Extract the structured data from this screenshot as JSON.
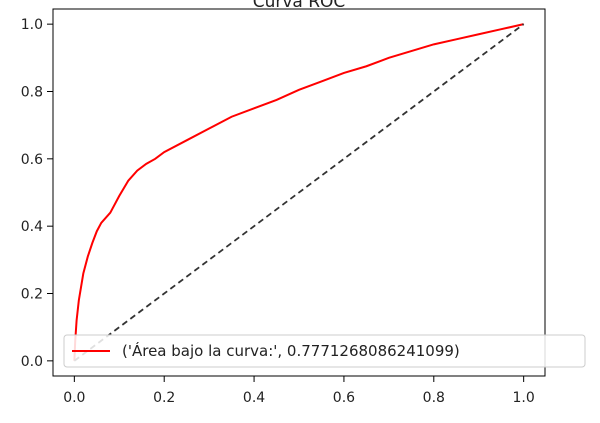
{
  "chart_data": {
    "type": "line",
    "title": "Curva ROC",
    "xlim": [
      0.0,
      1.0
    ],
    "ylim": [
      0.0,
      1.0
    ],
    "xticks": [
      "0.0",
      "0.2",
      "0.4",
      "0.6",
      "0.8",
      "1.0"
    ],
    "yticks": [
      "0.0",
      "0.2",
      "0.4",
      "0.6",
      "0.8",
      "1.0"
    ],
    "grid": false,
    "legend_position": "lower-right",
    "series": [
      {
        "name": "('Área bajo la curva:', 0.7771268086241099)",
        "color": "#ff0000",
        "style": "solid",
        "points": [
          [
            0.0,
            0.0
          ],
          [
            0.002,
            0.06
          ],
          [
            0.005,
            0.12
          ],
          [
            0.01,
            0.18
          ],
          [
            0.015,
            0.22
          ],
          [
            0.02,
            0.26
          ],
          [
            0.03,
            0.31
          ],
          [
            0.04,
            0.35
          ],
          [
            0.05,
            0.385
          ],
          [
            0.06,
            0.41
          ],
          [
            0.08,
            0.44
          ],
          [
            0.1,
            0.49
          ],
          [
            0.12,
            0.535
          ],
          [
            0.14,
            0.565
          ],
          [
            0.16,
            0.585
          ],
          [
            0.18,
            0.6
          ],
          [
            0.2,
            0.62
          ],
          [
            0.25,
            0.655
          ],
          [
            0.3,
            0.69
          ],
          [
            0.35,
            0.725
          ],
          [
            0.4,
            0.75
          ],
          [
            0.45,
            0.775
          ],
          [
            0.5,
            0.805
          ],
          [
            0.55,
            0.83
          ],
          [
            0.6,
            0.855
          ],
          [
            0.65,
            0.875
          ],
          [
            0.7,
            0.9
          ],
          [
            0.75,
            0.92
          ],
          [
            0.8,
            0.94
          ],
          [
            0.85,
            0.955
          ],
          [
            0.9,
            0.97
          ],
          [
            0.95,
            0.985
          ],
          [
            1.0,
            1.0
          ]
        ]
      },
      {
        "name": "",
        "color": "#333333",
        "style": "dashed",
        "points": [
          [
            0.0,
            0.0
          ],
          [
            1.0,
            1.0
          ]
        ]
      }
    ]
  }
}
